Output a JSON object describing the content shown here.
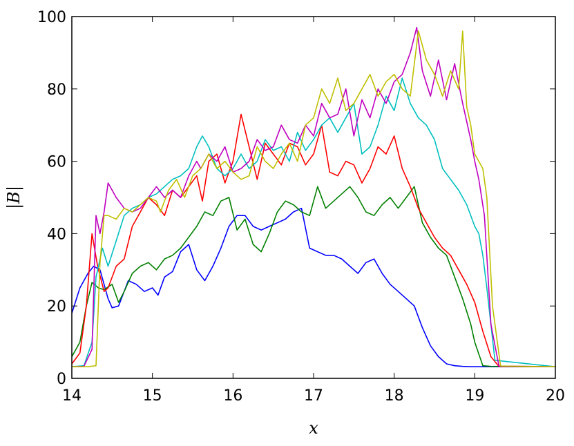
{
  "chart_data": {
    "type": "line",
    "xlabel": "x",
    "ylabel": "|B|",
    "xlim": [
      14,
      20
    ],
    "ylim": [
      0,
      100
    ],
    "xticks": [
      14,
      15,
      16,
      17,
      18,
      19,
      20
    ],
    "yticks": [
      0,
      20,
      40,
      60,
      80,
      100
    ],
    "grid": false,
    "series": [
      {
        "color": "#0000ff",
        "x": [
          14.0,
          14.1,
          14.2,
          14.27,
          14.35,
          14.45,
          14.5,
          14.58,
          14.7,
          14.8,
          14.9,
          15.0,
          15.07,
          15.15,
          15.25,
          15.35,
          15.45,
          15.55,
          15.65,
          15.75,
          15.85,
          15.95,
          16.05,
          16.15,
          16.25,
          16.35,
          16.45,
          16.55,
          16.65,
          16.75,
          16.85,
          16.95,
          17.05,
          17.15,
          17.25,
          17.35,
          17.45,
          17.55,
          17.65,
          17.75,
          17.85,
          17.95,
          18.05,
          18.15,
          18.25,
          18.35,
          18.45,
          18.55,
          18.65,
          18.75,
          18.85,
          18.95,
          19.0,
          19.05,
          19.1,
          19.2,
          20.0
        ],
        "y": [
          18,
          25,
          29,
          31,
          30,
          22,
          19.5,
          20,
          27,
          26,
          24,
          25,
          23,
          28,
          29.5,
          35,
          37,
          30,
          27,
          31,
          36,
          42,
          45,
          45,
          42,
          41,
          42,
          43,
          44,
          46,
          47,
          36,
          35,
          34,
          34,
          33,
          31,
          29,
          32,
          33,
          29,
          26,
          24,
          22,
          20,
          14,
          9,
          6,
          4,
          3.5,
          3.3,
          3.2,
          3.2,
          3.2,
          3.2,
          3.2,
          3.2
        ]
      },
      {
        "color": "#008000",
        "x": [
          14.0,
          14.1,
          14.18,
          14.25,
          14.33,
          14.4,
          14.5,
          14.58,
          14.65,
          14.75,
          14.85,
          14.95,
          15.05,
          15.15,
          15.25,
          15.35,
          15.45,
          15.55,
          15.65,
          15.75,
          15.85,
          15.95,
          16.05,
          16.15,
          16.25,
          16.35,
          16.45,
          16.55,
          16.65,
          16.75,
          16.85,
          16.95,
          17.05,
          17.15,
          17.25,
          17.35,
          17.45,
          17.55,
          17.65,
          17.75,
          17.85,
          17.95,
          18.05,
          18.15,
          18.25,
          18.35,
          18.45,
          18.55,
          18.65,
          18.75,
          18.85,
          18.95,
          19.0,
          19.1,
          19.2,
          20.0
        ],
        "y": [
          6,
          10,
          20,
          26.5,
          25,
          24.5,
          26,
          21,
          24,
          29,
          31,
          32,
          30,
          33,
          34,
          36,
          39,
          42,
          46,
          45,
          49,
          50,
          41,
          44,
          37,
          35,
          40,
          46,
          49,
          48,
          46,
          45,
          53,
          47,
          49,
          51,
          53,
          50,
          46,
          45,
          48,
          50,
          47,
          50,
          53,
          43,
          39,
          36,
          34,
          28,
          22,
          15,
          10,
          3.5,
          3.3,
          3.2
        ]
      },
      {
        "color": "#ff0000",
        "x": [
          14.0,
          14.1,
          14.18,
          14.25,
          14.32,
          14.4,
          14.45,
          14.55,
          14.65,
          14.75,
          14.85,
          14.95,
          15.05,
          15.15,
          15.25,
          15.35,
          15.45,
          15.55,
          15.62,
          15.7,
          15.8,
          15.9,
          16.0,
          16.1,
          16.2,
          16.3,
          16.4,
          16.5,
          16.6,
          16.7,
          16.8,
          16.9,
          17.0,
          17.1,
          17.2,
          17.3,
          17.4,
          17.5,
          17.6,
          17.7,
          17.8,
          17.9,
          18.0,
          18.1,
          18.2,
          18.3,
          18.4,
          18.5,
          18.6,
          18.7,
          18.8,
          18.9,
          19.0,
          19.1,
          19.2,
          19.3,
          20.0
        ],
        "y": [
          4,
          7,
          20,
          40,
          31,
          24,
          25,
          31,
          33,
          42,
          46,
          50,
          48,
          45,
          52,
          50,
          53,
          56,
          49,
          60,
          62,
          54,
          60,
          73,
          64,
          55,
          65,
          62,
          59,
          65,
          64,
          59,
          62,
          70,
          57,
          56,
          60,
          59,
          54,
          58,
          64,
          62,
          67,
          58,
          53,
          47,
          43,
          39,
          36,
          34,
          30,
          26,
          21,
          13,
          6,
          3.3,
          3.2
        ]
      },
      {
        "color": "#00bfbf",
        "x": [
          14.0,
          14.15,
          14.25,
          14.3,
          14.38,
          14.45,
          14.55,
          14.65,
          14.75,
          14.85,
          14.95,
          15.05,
          15.15,
          15.25,
          15.35,
          15.45,
          15.55,
          15.62,
          15.7,
          15.8,
          15.9,
          16.0,
          16.1,
          16.2,
          16.3,
          16.4,
          16.5,
          16.6,
          16.7,
          16.8,
          16.9,
          17.0,
          17.1,
          17.2,
          17.3,
          17.4,
          17.5,
          17.6,
          17.7,
          17.8,
          17.9,
          18.0,
          18.1,
          18.2,
          18.3,
          18.4,
          18.5,
          18.6,
          18.7,
          18.8,
          18.9,
          19.0,
          19.05,
          19.1,
          19.15,
          19.25,
          20.0
        ],
        "y": [
          3.2,
          3.5,
          10,
          28,
          36,
          31,
          38,
          45,
          47,
          48,
          50,
          51,
          53,
          55,
          56,
          58,
          64,
          67,
          64,
          58,
          56,
          58,
          62,
          58,
          60,
          66,
          63,
          64,
          60,
          68,
          63,
          66,
          70,
          72,
          68,
          72,
          76,
          62,
          64,
          70,
          78,
          74,
          83,
          76,
          72,
          70,
          66,
          58,
          55,
          52,
          48,
          42,
          40,
          34,
          25,
          5,
          3.2
        ]
      },
      {
        "color": "#bf00bf",
        "x": [
          14.0,
          14.15,
          14.25,
          14.3,
          14.35,
          14.4,
          14.45,
          14.55,
          14.65,
          14.75,
          14.85,
          14.95,
          15.05,
          15.15,
          15.25,
          15.35,
          15.45,
          15.55,
          15.6,
          15.7,
          15.8,
          15.9,
          16.0,
          16.1,
          16.2,
          16.3,
          16.4,
          16.5,
          16.6,
          16.7,
          16.8,
          16.9,
          17.0,
          17.1,
          17.2,
          17.3,
          17.4,
          17.5,
          17.6,
          17.7,
          17.8,
          17.9,
          18.0,
          18.1,
          18.2,
          18.28,
          18.35,
          18.45,
          18.55,
          18.65,
          18.75,
          18.85,
          18.95,
          19.0,
          19.05,
          19.12,
          19.2,
          19.3,
          20.0
        ],
        "y": [
          3.2,
          3.3,
          8,
          45,
          40,
          46,
          54,
          50,
          47,
          46,
          47,
          50,
          53,
          50,
          52,
          50,
          56,
          60,
          58,
          62,
          60,
          64,
          57,
          58,
          60,
          66,
          63,
          64,
          70,
          66,
          65,
          70,
          67,
          76,
          72,
          73,
          80,
          67,
          77,
          72,
          80,
          76,
          82,
          84,
          90,
          97,
          85,
          78,
          88,
          77,
          87,
          76,
          66,
          60,
          55,
          45,
          15,
          3.4,
          3.2
        ]
      },
      {
        "color": "#bfbf00",
        "x": [
          14.0,
          14.2,
          14.3,
          14.35,
          14.4,
          14.45,
          14.55,
          14.65,
          14.75,
          14.85,
          14.95,
          15.05,
          15.1,
          15.2,
          15.3,
          15.4,
          15.5,
          15.6,
          15.7,
          15.8,
          15.9,
          16.0,
          16.1,
          16.2,
          16.3,
          16.4,
          16.5,
          16.6,
          16.7,
          16.8,
          16.9,
          17.0,
          17.1,
          17.2,
          17.3,
          17.4,
          17.5,
          17.6,
          17.7,
          17.8,
          17.9,
          18.0,
          18.1,
          18.2,
          18.3,
          18.4,
          18.5,
          18.6,
          18.7,
          18.8,
          18.85,
          18.9,
          18.95,
          19.0,
          19.05,
          19.1,
          19.15,
          19.22,
          19.32,
          20.0
        ],
        "y": [
          3.2,
          3.2,
          3.5,
          32,
          45,
          45,
          44,
          47,
          46,
          48,
          50,
          49,
          46,
          52,
          55,
          50,
          56,
          58,
          62,
          58,
          60,
          57,
          55,
          56,
          64,
          60,
          58,
          62,
          65,
          60,
          70,
          72,
          80,
          76,
          83,
          74,
          76,
          80,
          84,
          78,
          82,
          84,
          80,
          78,
          96,
          88,
          84,
          78,
          85,
          80,
          96,
          75,
          70,
          62,
          60,
          58,
          50,
          20,
          3.4,
          3.2
        ]
      }
    ]
  }
}
